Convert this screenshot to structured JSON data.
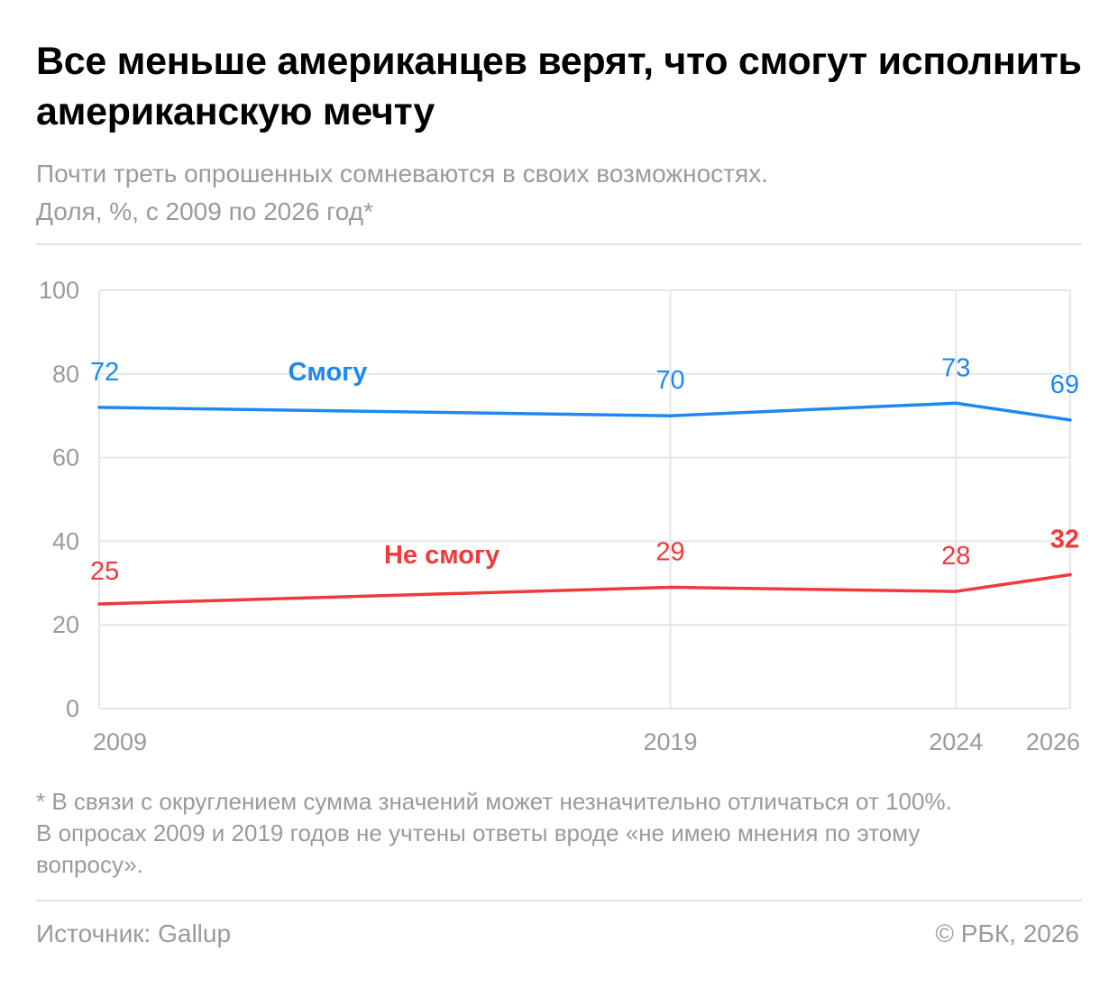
{
  "header": {
    "title": "Все меньше американцев верят, что смогут исполнить американскую мечту",
    "subtitle_line1": "Почти треть опрошенных сомневаются в своих возможностях.",
    "subtitle_line2": "Доля, %, с 2009 по 2026 год*"
  },
  "footnote": {
    "line1": "* В связи с округлением сумма значений может незначительно отличаться от 100%.",
    "line2": "В опросах 2009 и 2019 годов не учтены ответы вроде «не имею мнения по этому",
    "line3": "вопросу»."
  },
  "footer": {
    "source": "Источник: Gallup",
    "copyright": "© РБК, 2026"
  },
  "colors": {
    "can": "#1e88f0",
    "cannot": "#f0393b",
    "grid": "#e6e6e6",
    "axis_text": "#9a9a9a"
  },
  "chart_data": {
    "type": "line",
    "x": [
      2009,
      2019,
      2024,
      2026
    ],
    "ylim": [
      0,
      100
    ],
    "yticks": [
      0,
      20,
      40,
      60,
      80,
      100
    ],
    "grid": true,
    "series": [
      {
        "name": "Смогу",
        "values": [
          72,
          70,
          73,
          69
        ],
        "color": "#1e88f0"
      },
      {
        "name": "Не смогу",
        "values": [
          25,
          29,
          28,
          32
        ],
        "color": "#f0393b",
        "highlight_last": true
      }
    ]
  }
}
